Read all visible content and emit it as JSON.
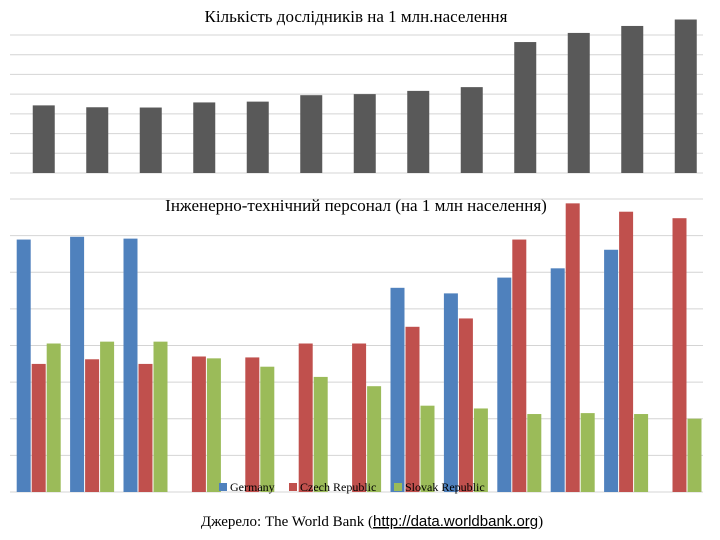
{
  "chart_data": [
    {
      "type": "bar",
      "title": "Кількість дослідників на 1 млн.населення",
      "categories": [
        "",
        "",
        "",
        "",
        "",
        "",
        "",
        "",
        "",
        "",
        "",
        "",
        ""
      ],
      "series": [
        {
          "values": [
            2520,
            2450,
            2440,
            2630,
            2660,
            2900,
            2940,
            3060,
            3200,
            4880,
            5220,
            5480,
            5720
          ],
          "color": "#595959"
        }
      ],
      "ylim": [
        0,
        6000
      ],
      "grid": true,
      "legend": "none"
    },
    {
      "type": "bar",
      "title": "Інженерно-технічний персонал (на 1 млн населення)",
      "categories": [
        "",
        "",
        "",
        "",
        "",
        "",
        "",
        "",
        "",
        "",
        "",
        "",
        ""
      ],
      "series": [
        {
          "name": "Germany",
          "color": "#4f81bd",
          "values": [
            1360,
            1375,
            1365,
            null,
            null,
            null,
            null,
            1100,
            1070,
            1155,
            1205,
            1305,
            null
          ]
        },
        {
          "name": "Czech Republic",
          "color": "#c0504d",
          "values": [
            690,
            715,
            690,
            730,
            725,
            800,
            800,
            890,
            935,
            1360,
            1555,
            1510,
            1475
          ]
        },
        {
          "name": "Slovak Republic",
          "color": "#9bbb59",
          "values": [
            800,
            810,
            810,
            720,
            675,
            620,
            570,
            465,
            450,
            420,
            425,
            420,
            395
          ]
        }
      ],
      "ylim": [
        0,
        1600
      ],
      "grid": true,
      "legend": "bottom"
    }
  ],
  "source": {
    "prefix": "Джерело: The World Bank (",
    "link": "http://data.worldbank.org",
    "suffix": ")"
  }
}
